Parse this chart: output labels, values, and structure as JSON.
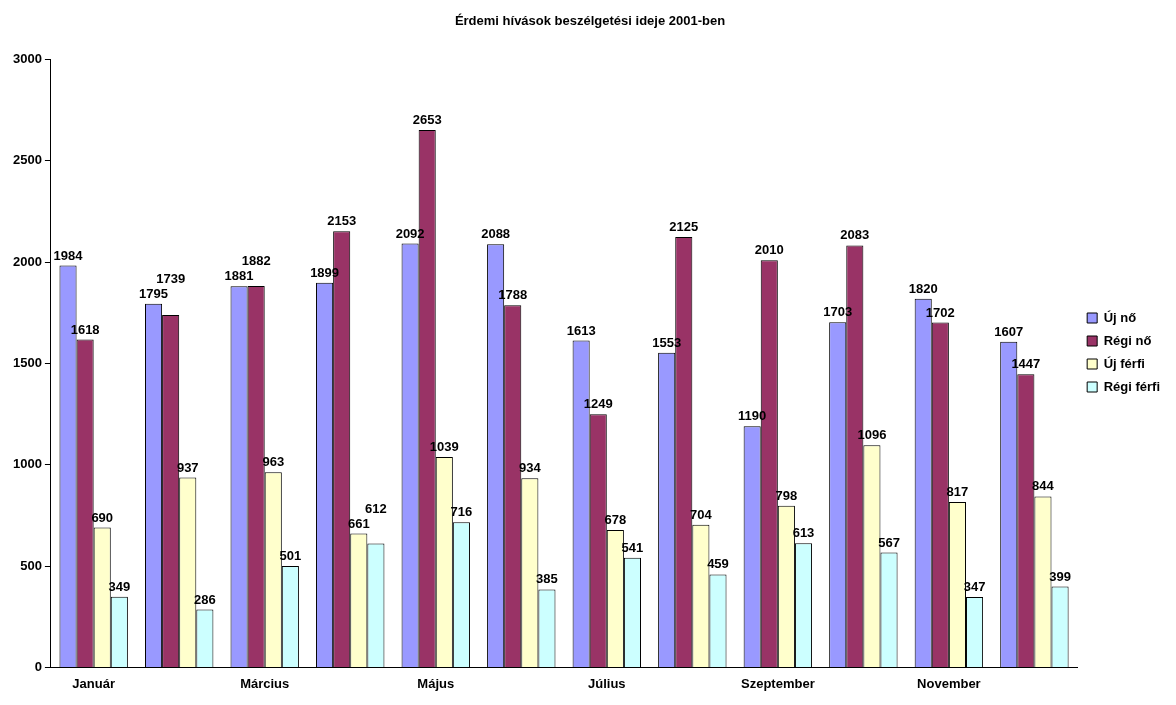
{
  "chart_data": {
    "type": "bar",
    "title": "Érdemi hívások beszélgetési ideje 2001-ben",
    "categories": [
      "Január",
      null,
      "Március",
      null,
      "Május",
      null,
      "Július",
      null,
      "Szeptember",
      null,
      "November",
      null
    ],
    "series": [
      {
        "name": "Új nő",
        "color": "#9999ff",
        "values": [
          1984,
          1795,
          1881,
          1899,
          2092,
          2088,
          1613,
          1553,
          1190,
          1703,
          1820,
          1607
        ]
      },
      {
        "name": "Régi nő",
        "color": "#993366",
        "values": [
          1618,
          1739,
          1882,
          2153,
          2653,
          1788,
          1249,
          2125,
          2010,
          2083,
          1702,
          1447
        ]
      },
      {
        "name": "Új férfi",
        "color": "#ffffcc",
        "values": [
          690,
          937,
          963,
          661,
          1039,
          934,
          678,
          704,
          798,
          1096,
          817,
          844
        ]
      },
      {
        "name": "Régi férfi",
        "color": "#ccffff",
        "values": [
          349,
          286,
          501,
          612,
          716,
          385,
          541,
          459,
          613,
          567,
          347,
          399
        ]
      }
    ],
    "ylim": [
      0,
      3000
    ],
    "yticks": [
      0,
      500,
      1000,
      1500,
      2000,
      2500,
      3000
    ],
    "grid": false,
    "legend": "right",
    "data_labels": true
  }
}
